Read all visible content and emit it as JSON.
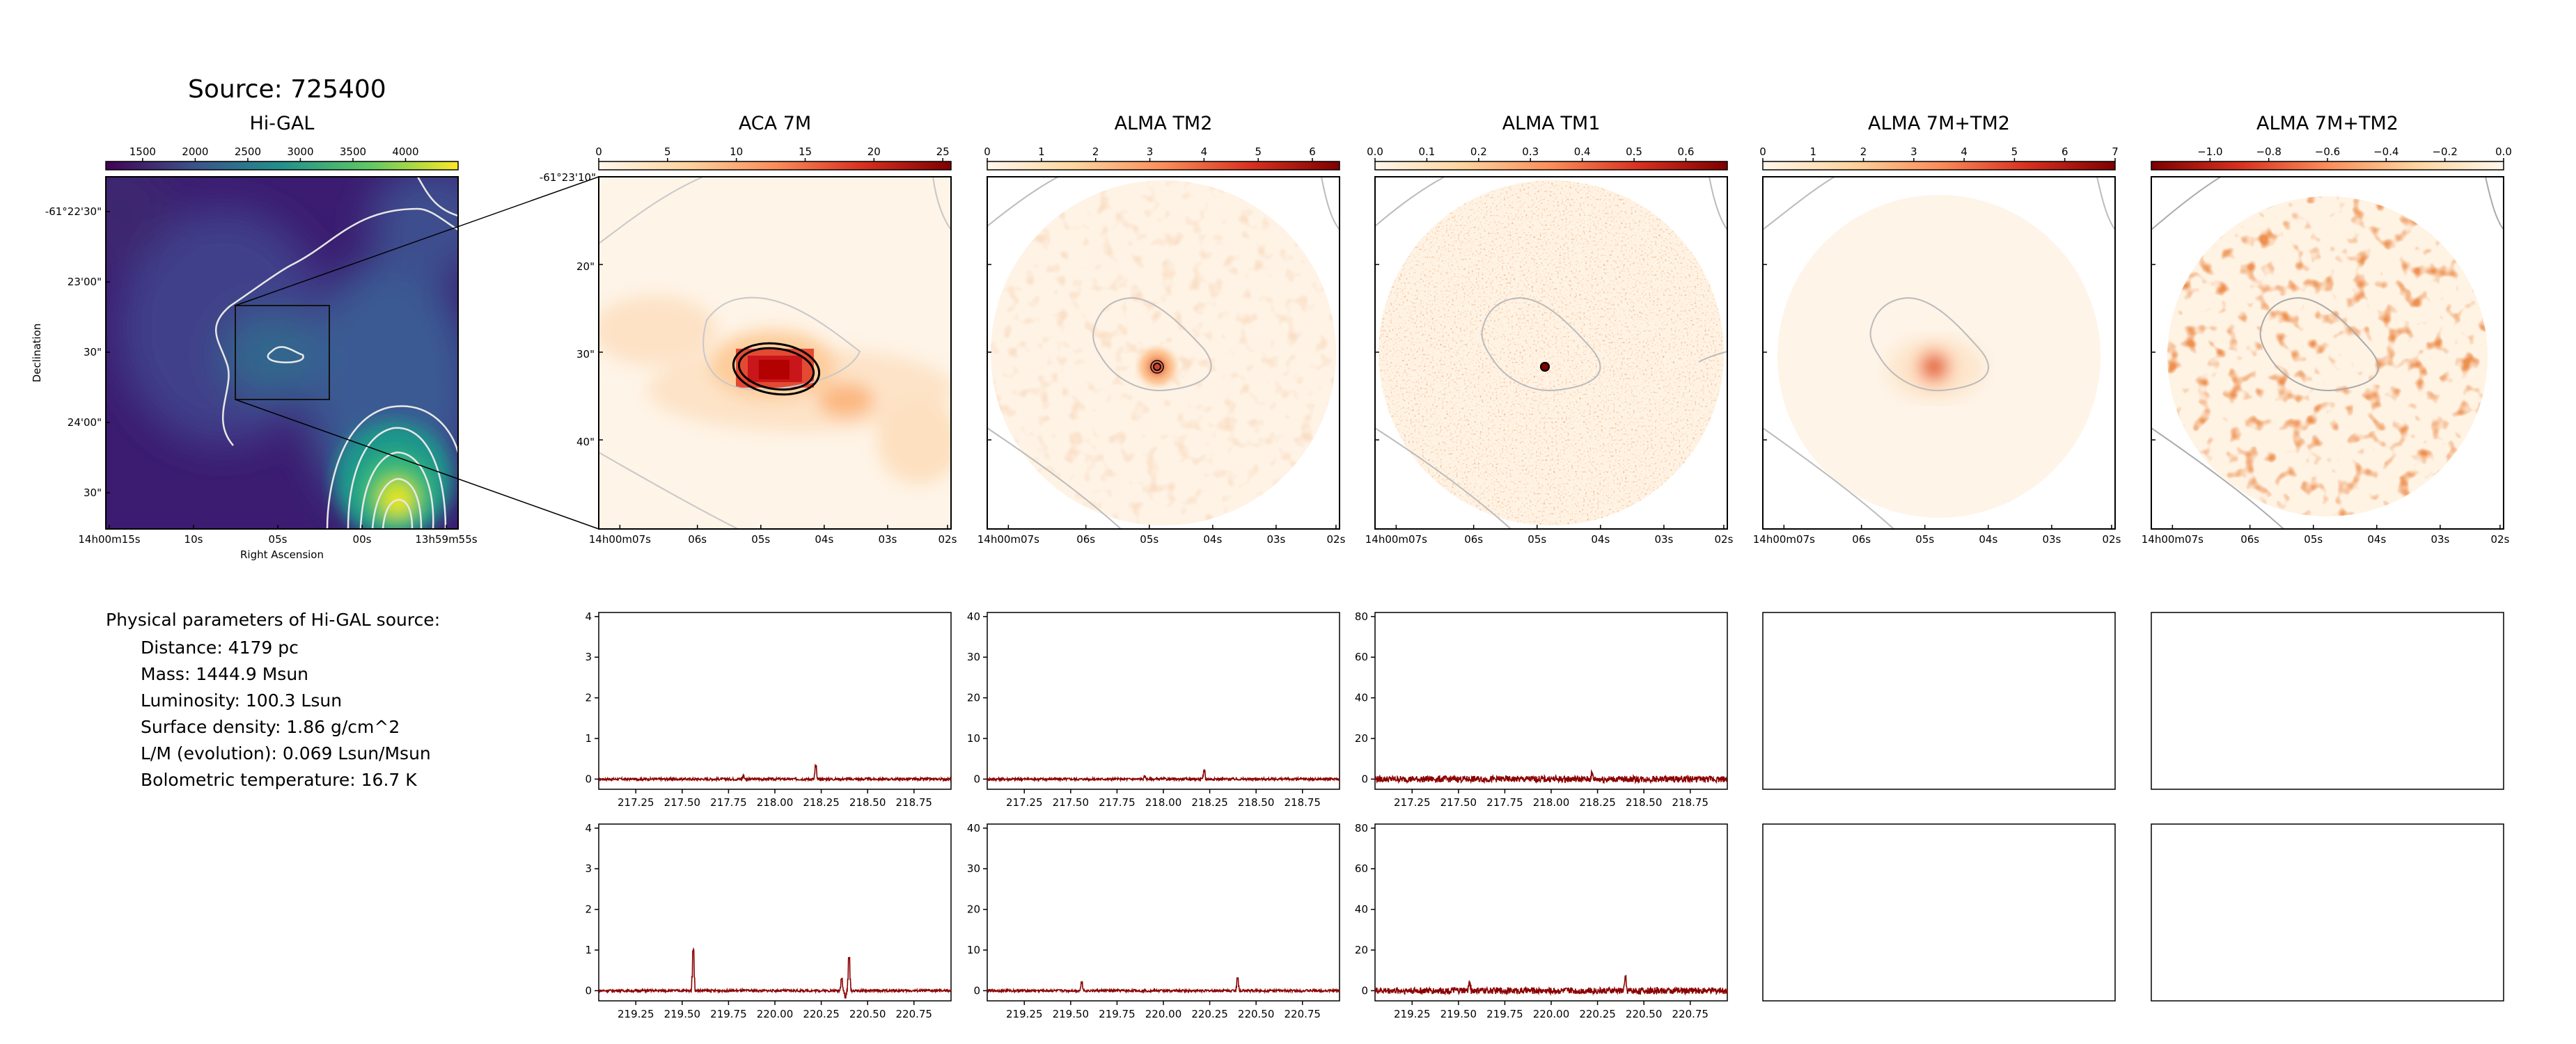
{
  "source_title": "Source: 725400",
  "panel_titles": [
    "Hi-GAL",
    "ACA 7M",
    "ALMA TM2",
    "ALMA TM1",
    "ALMA 7M+TM2",
    "ALMA 7M+TM2"
  ],
  "colorbars": [
    {
      "ticks": [
        "1500",
        "2000",
        "2500",
        "3000",
        "3500",
        "4000"
      ],
      "values": [
        1500,
        2000,
        2500,
        3000,
        3500,
        4000
      ],
      "range": [
        1150,
        4500
      ],
      "scheme": "viridis"
    },
    {
      "ticks": [
        "0",
        "5",
        "10",
        "15",
        "20",
        "25"
      ],
      "values": [
        0,
        5,
        10,
        15,
        20,
        25
      ],
      "range": [
        0,
        25.6
      ],
      "scheme": "orrd"
    },
    {
      "ticks": [
        "0",
        "1",
        "2",
        "3",
        "4",
        "5",
        "6"
      ],
      "values": [
        0,
        1,
        2,
        3,
        4,
        5,
        6
      ],
      "range": [
        0,
        6.5
      ],
      "scheme": "orrd"
    },
    {
      "ticks": [
        "0.0",
        "0.1",
        "0.2",
        "0.3",
        "0.4",
        "0.5",
        "0.6"
      ],
      "values": [
        0,
        0.1,
        0.2,
        0.3,
        0.4,
        0.5,
        0.6
      ],
      "range": [
        0,
        0.68
      ],
      "scheme": "orrd"
    },
    {
      "ticks": [
        "0",
        "1",
        "2",
        "3",
        "4",
        "5",
        "6",
        "7"
      ],
      "values": [
        0,
        1,
        2,
        3,
        4,
        5,
        6,
        7
      ],
      "range": [
        0,
        7
      ],
      "scheme": "orrd"
    },
    {
      "ticks": [
        "−1.0",
        "−0.8",
        "−0.6",
        "−0.4",
        "−0.2",
        "0.0"
      ],
      "values": [
        -1.0,
        -0.8,
        -0.6,
        -0.4,
        -0.2,
        0.0
      ],
      "range": [
        -1.2,
        0.0
      ],
      "scheme": "orrd-reversed"
    }
  ],
  "higal_axes": {
    "ylabel": "Declination",
    "xlabel": "Right Ascension",
    "yticks": [
      "-61°22'30\"",
      "23'00\"",
      "30\"",
      "24'00\"",
      "30\""
    ],
    "xticks": [
      "14h00m15s",
      "10s",
      "05s",
      "00s",
      "13h59m55s"
    ]
  },
  "zoom_axes": {
    "ytick_top": "-61°23'10\"",
    "yticks": [
      "20\"",
      "30\"",
      "40\""
    ],
    "xticks": [
      "14h00m07s",
      "06s",
      "05s",
      "04s",
      "03s",
      "02s"
    ]
  },
  "params": {
    "heading": "Physical parameters of Hi-GAL source:",
    "lines": [
      "Distance: 4179 pc",
      "Mass: 1444.9 Msun",
      "Luminosity: 100.3 Lsun",
      "Surface density: 1.86 g/cm^2",
      "L/M (evolution): 0.069 Lsun/Msun",
      "Bolometric temperature: 16.7 K"
    ]
  },
  "chart_data": [
    {
      "type": "heatmap",
      "title": "Hi-GAL",
      "xlabel": "Right Ascension",
      "ylabel": "Declination",
      "xticks": [
        "14h00m15s",
        "10s",
        "05s",
        "00s",
        "13h59m55s"
      ],
      "yticks": [
        "-61°22'30\"",
        "23'00\"",
        "30\"",
        "24'00\"",
        "30\""
      ],
      "colorbar_ticks": [
        1500,
        2000,
        2500,
        3000,
        3500,
        4000
      ]
    },
    {
      "type": "heatmap",
      "title": "ACA 7M",
      "colorbar_ticks": [
        0,
        5,
        10,
        15,
        20,
        25
      ]
    },
    {
      "type": "heatmap",
      "title": "ALMA TM2",
      "colorbar_ticks": [
        0,
        1,
        2,
        3,
        4,
        5,
        6
      ]
    },
    {
      "type": "heatmap",
      "title": "ALMA TM1",
      "colorbar_ticks": [
        0.0,
        0.1,
        0.2,
        0.3,
        0.4,
        0.5,
        0.6
      ]
    },
    {
      "type": "heatmap",
      "title": "ALMA 7M+TM2",
      "colorbar_ticks": [
        0,
        1,
        2,
        3,
        4,
        5,
        6,
        7
      ]
    },
    {
      "type": "heatmap",
      "title": "ALMA 7M+TM2",
      "colorbar_ticks": [
        -1.0,
        -0.8,
        -0.6,
        -0.4,
        -0.2,
        0.0
      ]
    },
    {
      "type": "line",
      "panel": "ACA 7M spectrum (lower sideband)",
      "xlim": [
        217.05,
        218.95
      ],
      "ylim": [
        -0.25,
        4.1
      ],
      "xticks": [
        217.25,
        217.5,
        217.75,
        218.0,
        218.25,
        218.5,
        218.75
      ],
      "yticks": [
        0,
        1,
        2,
        3,
        4
      ],
      "peaks": [
        {
          "x": 218.22,
          "y": 0.32
        },
        {
          "x": 217.83,
          "y": 0.08
        }
      ],
      "noise": 0.03
    },
    {
      "type": "line",
      "panel": "ALMA TM2 spectrum (lower sideband)",
      "xlim": [
        217.05,
        218.95
      ],
      "ylim": [
        -2.5,
        41
      ],
      "xticks": [
        217.25,
        217.5,
        217.75,
        218.0,
        218.25,
        218.5,
        218.75
      ],
      "yticks": [
        0,
        10,
        20,
        30,
        40
      ],
      "peaks": [
        {
          "x": 218.22,
          "y": 2.2
        },
        {
          "x": 217.9,
          "y": 0.6
        }
      ],
      "noise": 0.3
    },
    {
      "type": "line",
      "panel": "ALMA TM1 spectrum (lower sideband)",
      "xlim": [
        217.05,
        218.95
      ],
      "ylim": [
        -5,
        82
      ],
      "xticks": [
        217.25,
        217.5,
        217.75,
        218.0,
        218.25,
        218.5,
        218.75
      ],
      "yticks": [
        0,
        20,
        40,
        60,
        80
      ],
      "peaks": [
        {
          "x": 218.22,
          "y": 2.5
        }
      ],
      "noise": 1.6
    },
    {
      "type": "line",
      "panel": "ACA 7M spectrum (upper sideband)",
      "xlim": [
        219.05,
        220.95
      ],
      "ylim": [
        -0.25,
        4.1
      ],
      "xticks": [
        219.25,
        219.5,
        219.75,
        220.0,
        220.25,
        220.5,
        220.75
      ],
      "yticks": [
        0,
        1,
        2,
        3,
        4
      ],
      "peaks": [
        {
          "x": 219.56,
          "y": 1.0
        },
        {
          "x": 220.4,
          "y": 0.8
        },
        {
          "x": 220.38,
          "y": -0.18
        },
        {
          "x": 220.36,
          "y": 0.3
        }
      ],
      "noise": 0.03
    },
    {
      "type": "line",
      "panel": "ALMA TM2 spectrum (upper sideband)",
      "xlim": [
        219.05,
        220.95
      ],
      "ylim": [
        -2.5,
        41
      ],
      "xticks": [
        219.25,
        219.5,
        219.75,
        220.0,
        220.25,
        220.5,
        220.75
      ],
      "yticks": [
        0,
        10,
        20,
        30,
        40
      ],
      "peaks": [
        {
          "x": 219.56,
          "y": 2.2
        },
        {
          "x": 220.4,
          "y": 3.2
        }
      ],
      "noise": 0.3
    },
    {
      "type": "line",
      "panel": "ALMA TM1 spectrum (upper sideband)",
      "xlim": [
        219.05,
        220.95
      ],
      "ylim": [
        -5,
        82
      ],
      "xticks": [
        219.25,
        219.5,
        219.75,
        220.0,
        220.25,
        220.5,
        220.75
      ],
      "yticks": [
        0,
        20,
        40,
        60,
        80
      ],
      "peaks": [
        {
          "x": 219.56,
          "y": 4.0
        },
        {
          "x": 220.4,
          "y": 6.0
        }
      ],
      "noise": 1.6
    }
  ]
}
